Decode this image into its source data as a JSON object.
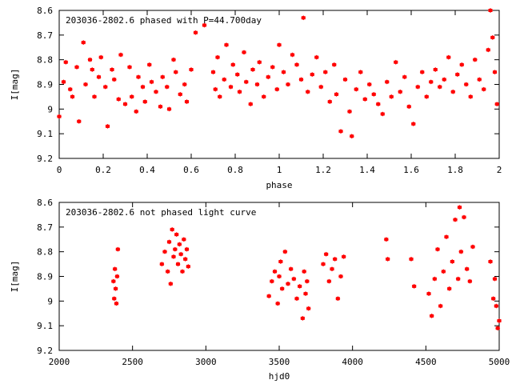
{
  "chart_data": [
    {
      "type": "scatter",
      "title": "203036-2802.6 phased with P=44.700day",
      "xlabel": "phase",
      "ylabel": "I[mag]",
      "xlim": [
        0,
        2
      ],
      "ylim": [
        9.2,
        8.6
      ],
      "y_inverted": true,
      "x_ticks": [
        "0",
        "0.2",
        "0.4",
        "0.6",
        "0.8",
        "1",
        "1.2",
        "1.4",
        "1.6",
        "1.8",
        "2"
      ],
      "y_ticks": [
        "8.6",
        "8.7",
        "8.8",
        "8.9",
        "9",
        "9.1",
        "9.2"
      ],
      "marker_color": "#ff0000",
      "series": [
        {
          "x": [
            0.0,
            0.02,
            0.03,
            0.05,
            0.06,
            0.08,
            0.09,
            0.11,
            0.12,
            0.14,
            0.15,
            0.16,
            0.18,
            0.19,
            0.21,
            0.22,
            0.24,
            0.25,
            0.27,
            0.28,
            0.3,
            0.32,
            0.33,
            0.35,
            0.36,
            0.38,
            0.39,
            0.41,
            0.42,
            0.44,
            0.46,
            0.47,
            0.49,
            0.5,
            0.52,
            0.53,
            0.55,
            0.57,
            0.58,
            0.6,
            0.62,
            0.66,
            0.7,
            0.71,
            0.72,
            0.73,
            0.75,
            0.76,
            0.78,
            0.79,
            0.81,
            0.82,
            0.84,
            0.85,
            0.87,
            0.88,
            0.9,
            0.91,
            0.93,
            0.95,
            0.97,
            0.99,
            1.0,
            1.02,
            1.04,
            1.06,
            1.08,
            1.1,
            1.11,
            1.13,
            1.15,
            1.17,
            1.19,
            1.21,
            1.23,
            1.25,
            1.26,
            1.28,
            1.3,
            1.32,
            1.33,
            1.35,
            1.37,
            1.39,
            1.41,
            1.43,
            1.45,
            1.47,
            1.49,
            1.51,
            1.53,
            1.55,
            1.57,
            1.59,
            1.61,
            1.63,
            1.65,
            1.67,
            1.69,
            1.71,
            1.73,
            1.75,
            1.77,
            1.79,
            1.81,
            1.83,
            1.85,
            1.87,
            1.89,
            1.91,
            1.93,
            1.95,
            1.96,
            1.97,
            1.98,
            1.99
          ],
          "y": [
            9.03,
            8.89,
            8.81,
            8.92,
            8.95,
            8.83,
            9.05,
            8.73,
            8.9,
            8.8,
            8.84,
            8.95,
            8.87,
            8.79,
            8.91,
            9.07,
            8.84,
            8.88,
            8.96,
            8.78,
            8.98,
            8.83,
            8.95,
            9.01,
            8.87,
            8.91,
            8.97,
            8.82,
            8.89,
            8.93,
            8.99,
            8.87,
            8.91,
            9.0,
            8.8,
            8.85,
            8.94,
            8.9,
            8.97,
            8.84,
            8.69,
            8.66,
            8.85,
            8.92,
            8.79,
            8.95,
            8.88,
            8.74,
            8.91,
            8.82,
            8.86,
            8.93,
            8.77,
            8.89,
            8.98,
            8.84,
            8.9,
            8.81,
            8.95,
            8.87,
            8.83,
            8.92,
            8.74,
            8.85,
            8.9,
            8.78,
            8.82,
            8.88,
            8.63,
            8.93,
            8.86,
            8.79,
            8.91,
            8.85,
            8.97,
            8.82,
            8.94,
            9.09,
            8.88,
            9.01,
            9.11,
            8.92,
            8.85,
            8.96,
            8.9,
            8.94,
            8.98,
            9.02,
            8.89,
            8.95,
            8.81,
            8.93,
            8.87,
            8.99,
            9.06,
            8.91,
            8.85,
            8.95,
            8.89,
            8.84,
            8.91,
            8.88,
            8.79,
            8.93,
            8.86,
            8.82,
            8.9,
            8.95,
            8.8,
            8.88,
            8.92,
            8.76,
            8.6,
            8.71,
            8.85,
            8.98
          ]
        }
      ]
    },
    {
      "type": "scatter",
      "title": "203036-2802.6 not phased light curve",
      "xlabel": "hjd0",
      "ylabel": "I[mag]",
      "xlim": [
        2000,
        5000
      ],
      "ylim": [
        9.2,
        8.6
      ],
      "y_inverted": true,
      "x_ticks": [
        "2000",
        "2500",
        "3000",
        "3500",
        "4000",
        "4500",
        "5000"
      ],
      "y_ticks": [
        "8.6",
        "8.7",
        "8.8",
        "8.9",
        "9",
        "9.1",
        "9.2"
      ],
      "marker_color": "#ff0000",
      "series": [
        {
          "x": [
            2370,
            2375,
            2380,
            2385,
            2390,
            2395,
            2400,
            2700,
            2720,
            2740,
            2750,
            2760,
            2770,
            2780,
            2790,
            2800,
            2810,
            2820,
            2830,
            2840,
            2850,
            2860,
            2870,
            2880,
            3430,
            3450,
            3470,
            3490,
            3500,
            3510,
            3520,
            3540,
            3560,
            3580,
            3600,
            3620,
            3640,
            3660,
            3670,
            3680,
            3690,
            3700,
            3800,
            3820,
            3840,
            3860,
            3880,
            3900,
            3920,
            3940,
            4230,
            4240,
            4400,
            4420,
            4520,
            4540,
            4560,
            4580,
            4600,
            4620,
            4640,
            4660,
            4680,
            4700,
            4720,
            4730,
            4740,
            4760,
            4780,
            4800,
            4820,
            4940,
            4960,
            4970,
            4980,
            4990,
            5000
          ],
          "y": [
            8.92,
            8.99,
            8.87,
            8.95,
            9.01,
            8.9,
            8.79,
            8.85,
            8.8,
            8.88,
            8.76,
            8.93,
            8.71,
            8.82,
            8.79,
            8.73,
            8.85,
            8.77,
            8.81,
            8.88,
            8.75,
            8.83,
            8.79,
            8.86,
            8.98,
            8.92,
            8.88,
            9.01,
            8.9,
            8.84,
            8.95,
            8.8,
            8.93,
            8.87,
            8.91,
            8.99,
            8.94,
            9.07,
            8.88,
            8.97,
            8.92,
            9.03,
            8.85,
            8.81,
            8.92,
            8.87,
            8.83,
            8.99,
            8.9,
            8.82,
            8.75,
            8.83,
            8.83,
            8.94,
            8.97,
            9.06,
            8.91,
            8.79,
            9.02,
            8.88,
            8.74,
            8.95,
            8.84,
            8.67,
            8.91,
            8.62,
            8.8,
            8.66,
            8.87,
            8.92,
            8.78,
            8.84,
            8.99,
            8.91,
            9.02,
            9.11,
            9.08
          ]
        }
      ]
    }
  ]
}
